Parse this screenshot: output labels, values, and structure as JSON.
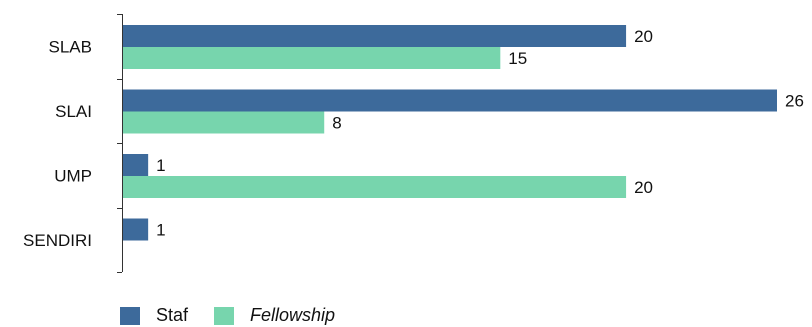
{
  "chart_data": {
    "type": "bar",
    "orientation": "horizontal",
    "categories": [
      "SLAB",
      "SLAI",
      "UMP",
      "SENDIRI"
    ],
    "series": [
      {
        "name": "Staf",
        "color": "#3d6a9b",
        "values": [
          20,
          26,
          1,
          1
        ],
        "italic": false
      },
      {
        "name": "Fellowship",
        "color": "#77d5ad",
        "values": [
          15,
          8,
          20,
          null
        ],
        "italic": true
      }
    ],
    "xlim": [
      0,
      26
    ],
    "grid": false,
    "legend_position": "bottom-left",
    "data_labels": true
  }
}
